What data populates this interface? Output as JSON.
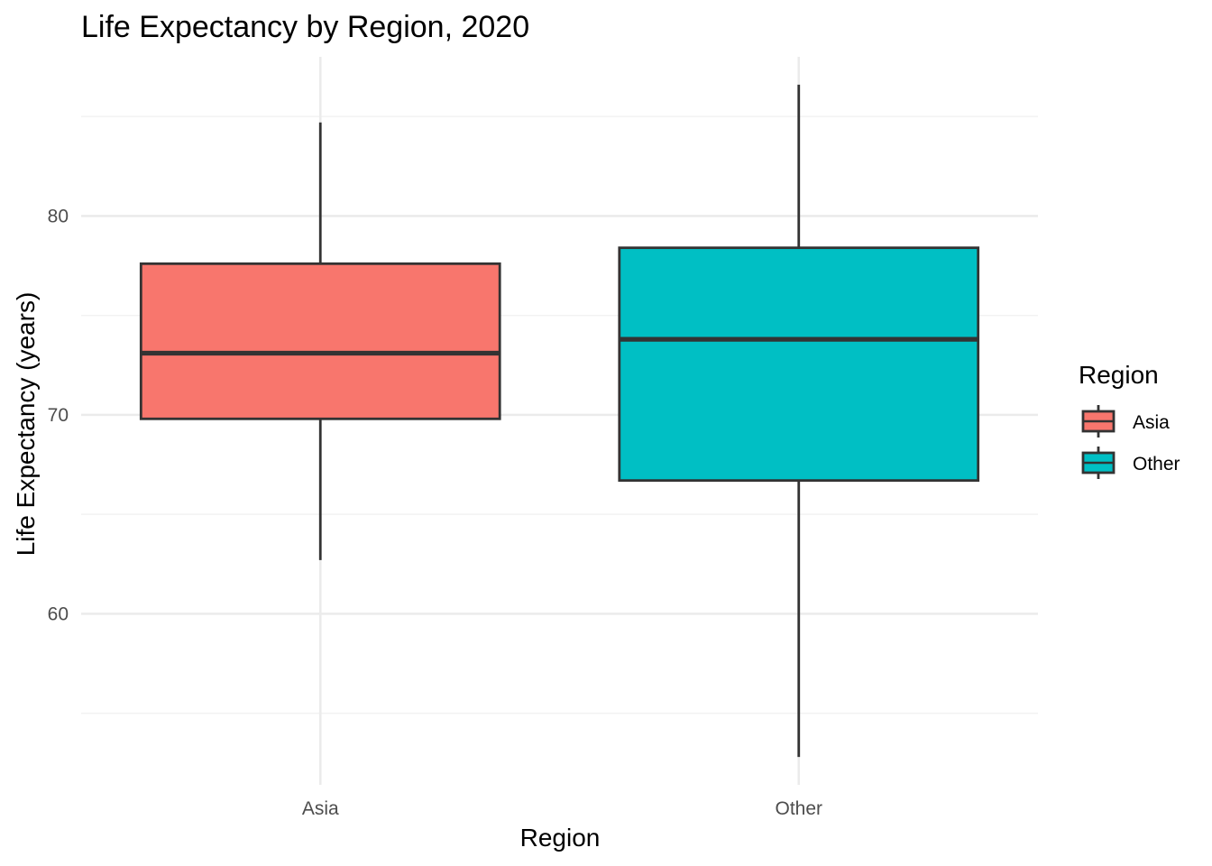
{
  "chart_data": {
    "type": "boxplot",
    "title": "Life Expectancy by Region, 2020",
    "xlabel": "Region",
    "ylabel": "Life Expectancy (years)",
    "categories": [
      "Asia",
      "Other"
    ],
    "boxes": [
      {
        "category": "Asia",
        "whisker_low": 62.7,
        "q1": 69.8,
        "median": 73.1,
        "q3": 77.6,
        "whisker_high": 84.7,
        "color": "#F8766D"
      },
      {
        "category": "Other",
        "whisker_low": 52.8,
        "q1": 66.7,
        "median": 73.8,
        "q3": 78.4,
        "whisker_high": 86.6,
        "color": "#00BFC4"
      }
    ],
    "ylim": [
      51.4,
      88.0
    ],
    "y_ticks": [
      60,
      70,
      80
    ],
    "y_tick_labels": [
      "60",
      "70",
      "80"
    ],
    "grid": true,
    "legend": {
      "title": "Region",
      "position": "right",
      "items": [
        {
          "label": "Asia",
          "color": "#F8766D"
        },
        {
          "label": "Other",
          "color": "#00BFC4"
        }
      ]
    }
  }
}
